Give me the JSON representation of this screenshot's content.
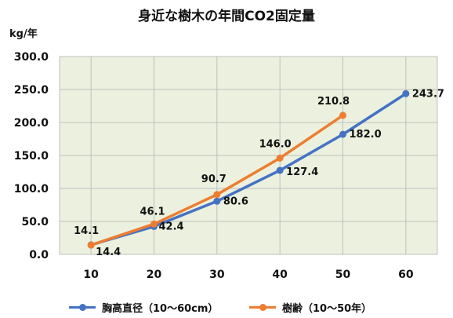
{
  "chart_data": {
    "type": "line",
    "title": "身近な樹木の年間CO2固定量",
    "ylabel": "kg/年",
    "xlabel": "",
    "categories": [
      10,
      20,
      30,
      40,
      50,
      60
    ],
    "ylim": [
      0,
      300
    ],
    "yticks": [
      "0.0",
      "50.0",
      "100.0",
      "150.0",
      "200.0",
      "250.0",
      "300.0"
    ],
    "grid": true,
    "legend_position": "bottom",
    "series": [
      {
        "name": "胸高直径（10～60cm）",
        "color": "#4472c4",
        "x": [
          10,
          20,
          30,
          40,
          50,
          60
        ],
        "values": [
          14.4,
          42.4,
          80.6,
          127.4,
          182.0,
          243.7
        ],
        "labels": [
          "14.4",
          "42.4",
          "80.6",
          "127.4",
          "182.0",
          "243.7"
        ]
      },
      {
        "name": "樹齢（10～50年）",
        "color": "#ed7d31",
        "x": [
          10,
          20,
          30,
          40,
          50
        ],
        "values": [
          14.1,
          46.1,
          90.7,
          146.0,
          210.8
        ],
        "labels": [
          "14.1",
          "46.1",
          "90.7",
          "146.0",
          "210.8"
        ]
      }
    ],
    "plot_background": "#ebf1de"
  }
}
